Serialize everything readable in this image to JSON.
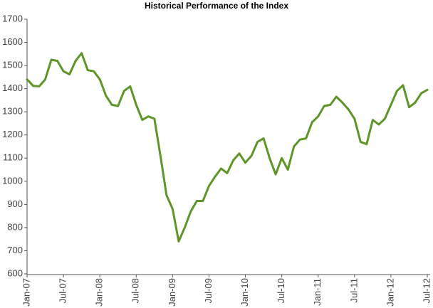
{
  "chart_data": {
    "type": "line",
    "title": "Historical Performance of the Index",
    "categories": [
      "Jan-07",
      null,
      null,
      null,
      null,
      null,
      "Jul-07",
      null,
      null,
      null,
      null,
      null,
      "Jan-08",
      null,
      null,
      null,
      null,
      null,
      "Jul-08",
      null,
      null,
      null,
      null,
      null,
      "Jan-09",
      null,
      null,
      null,
      null,
      null,
      "Jul-09",
      null,
      null,
      null,
      null,
      null,
      "Jan-10",
      null,
      null,
      null,
      null,
      null,
      "Jul-10",
      null,
      null,
      null,
      null,
      null,
      "Jan-11",
      null,
      null,
      null,
      null,
      null,
      "Jul-11",
      null,
      null,
      null,
      null,
      null,
      "Jan-12",
      null,
      null,
      null,
      null,
      null,
      "Jul-12"
    ],
    "series": [
      {
        "name": "Index",
        "color": "#5f9428",
        "values": [
          1440,
          1412,
          1410,
          1440,
          1525,
          1520,
          1475,
          1462,
          1520,
          1553,
          1480,
          1475,
          1440,
          1370,
          1330,
          1325,
          1390,
          1410,
          1330,
          1265,
          1280,
          1270,
          1110,
          940,
          880,
          740,
          800,
          870,
          915,
          915,
          980,
          1020,
          1055,
          1035,
          1090,
          1120,
          1080,
          1110,
          1170,
          1185,
          1100,
          1030,
          1100,
          1050,
          1150,
          1180,
          1185,
          1255,
          1280,
          1325,
          1330,
          1365,
          1340,
          1310,
          1270,
          1170,
          1160,
          1265,
          1245,
          1270,
          1330,
          1390,
          1415,
          1320,
          1340,
          1380,
          1395
        ]
      }
    ],
    "ylim": [
      600,
      1700
    ],
    "yticks": [
      600,
      700,
      800,
      900,
      1000,
      1100,
      1200,
      1300,
      1400,
      1500,
      1600,
      1700
    ],
    "grid": false
  }
}
